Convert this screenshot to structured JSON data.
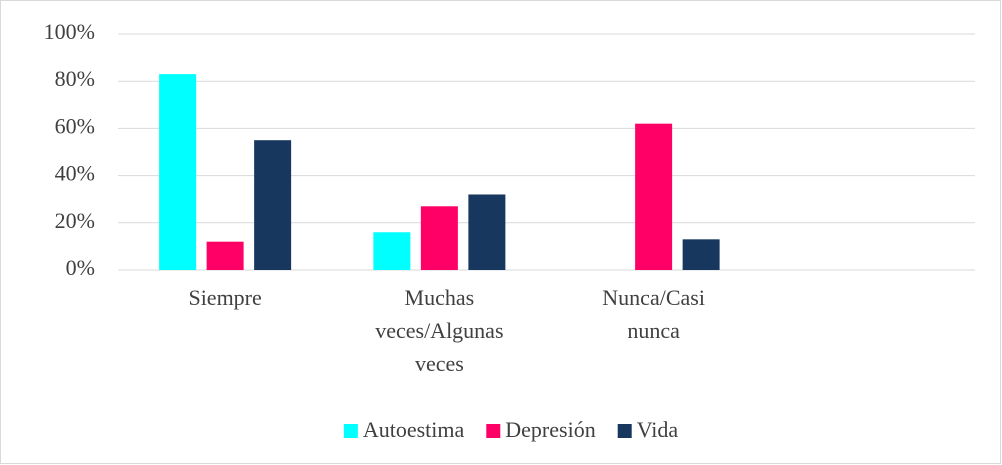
{
  "chart_data": {
    "type": "bar",
    "categories": [
      "Siempre",
      "Muchas veces/Algunas veces",
      "Nunca/Casi nunca",
      null
    ],
    "series": [
      {
        "name": "Autoestima",
        "color": "#00FFFF",
        "values": [
          83,
          16,
          0,
          null
        ]
      },
      {
        "name": "Depresión",
        "color": "#FF0066",
        "values": [
          12,
          27,
          62,
          null
        ]
      },
      {
        "name": "Vida",
        "color": "#17375E",
        "values": [
          55,
          32,
          13,
          null
        ]
      }
    ],
    "ylim": [
      0,
      100
    ],
    "yticks": [
      {
        "value": 0,
        "label": "0%"
      },
      {
        "value": 20,
        "label": "20%"
      },
      {
        "value": 40,
        "label": "40%"
      },
      {
        "value": 60,
        "label": "60%"
      },
      {
        "value": 80,
        "label": "80%"
      },
      {
        "value": 100,
        "label": "100%"
      }
    ],
    "grid": true,
    "legend": "bottom"
  }
}
